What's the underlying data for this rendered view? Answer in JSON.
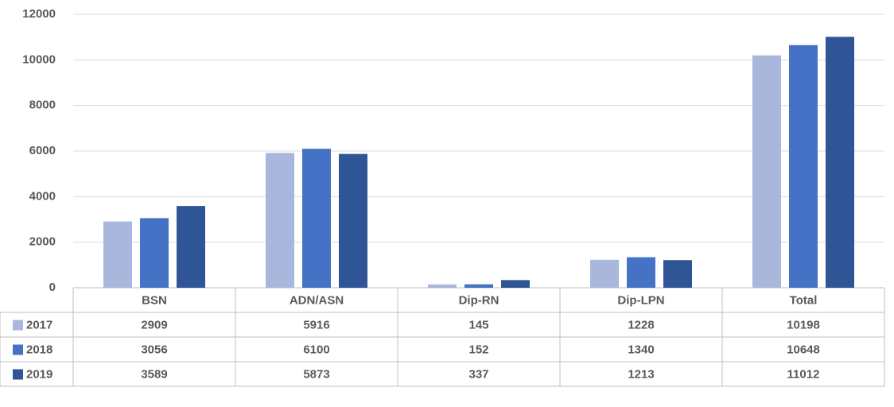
{
  "chart_data": {
    "type": "bar",
    "categories": [
      "BSN",
      "ADN/ASN",
      "Dip-RN",
      "Dip-LPN",
      "Total"
    ],
    "series": [
      {
        "name": "2017",
        "color": "#a9b7dc",
        "values": [
          2909,
          5916,
          145,
          1228,
          10198
        ]
      },
      {
        "name": "2018",
        "color": "#4472c4",
        "values": [
          3056,
          6100,
          152,
          1340,
          10648
        ]
      },
      {
        "name": "2019",
        "color": "#2f5597",
        "values": [
          3589,
          5873,
          337,
          1213,
          11012
        ]
      }
    ],
    "ylim": [
      0,
      12000
    ],
    "yticks": [
      0,
      2000,
      4000,
      6000,
      8000,
      10000,
      12000
    ],
    "grid": true
  }
}
